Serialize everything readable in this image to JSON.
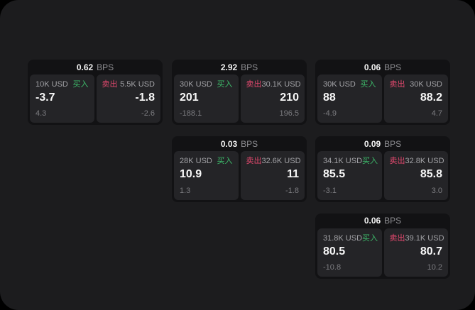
{
  "app": {
    "bps_unit": "BPS",
    "buy_label": "买入",
    "sell_label": "卖出"
  },
  "colors": {
    "buy": "#3dba6a",
    "sell": "#e0486d",
    "surface": "#1c1c1e",
    "card": "#121214",
    "panel": "#242427"
  },
  "columns": [
    {
      "cards": [
        {
          "bps": "0.62",
          "buy": {
            "amount": "10K USD",
            "value": "-3.7",
            "sub": "4.3"
          },
          "sell": {
            "amount": "5.5K USD",
            "value": "-1.8",
            "sub": "-2.6"
          }
        }
      ]
    },
    {
      "cards": [
        {
          "bps": "2.92",
          "buy": {
            "amount": "30K USD",
            "value": "201",
            "sub": "-188.1"
          },
          "sell": {
            "amount": "30.1K USD",
            "value": "210",
            "sub": "196.5"
          }
        },
        {
          "bps": "0.03",
          "buy": {
            "amount": "28K USD",
            "value": "10.9",
            "sub": "1.3"
          },
          "sell": {
            "amount": "32.6K USD",
            "value": "11",
            "sub": "-1.8"
          }
        }
      ]
    },
    {
      "cards": [
        {
          "bps": "0.06",
          "buy": {
            "amount": "30K USD",
            "value": "88",
            "sub": "-4.9"
          },
          "sell": {
            "amount": "30K USD",
            "value": "88.2",
            "sub": "4.7"
          }
        },
        {
          "bps": "0.09",
          "buy": {
            "amount": "34.1K USD",
            "value": "85.5",
            "sub": "-3.1"
          },
          "sell": {
            "amount": "32.8K USD",
            "value": "85.8",
            "sub": "3.0"
          }
        },
        {
          "bps": "0.06",
          "buy": {
            "amount": "31.8K USD",
            "value": "80.5",
            "sub": "-10.8"
          },
          "sell": {
            "amount": "39.1K USD",
            "value": "80.7",
            "sub": "10.2"
          }
        }
      ]
    }
  ]
}
